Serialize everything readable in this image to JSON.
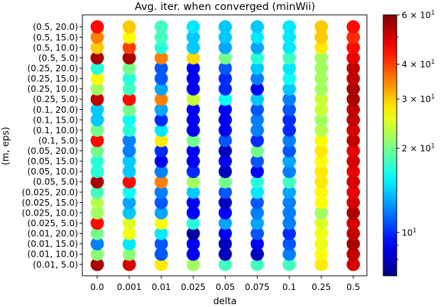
{
  "chart_data": {
    "type": "scatter",
    "title": "Avg. iter. when converged (minWii)",
    "xlabel": "delta",
    "ylabel": "(m, eps)",
    "x_categories": [
      "0.0",
      "0.001",
      "0.01",
      "0.025",
      "0.05",
      "0.075",
      "0.1",
      "0.25",
      "0.5"
    ],
    "y_categories": [
      "(0.01, 5.0)",
      "(0.01, 10.0)",
      "(0.01, 15.0)",
      "(0.01, 20.0)",
      "(0.025, 5.0)",
      "(0.025, 10.0)",
      "(0.025, 15.0)",
      "(0.025, 20.0)",
      "(0.05, 5.0)",
      "(0.05, 10.0)",
      "(0.05, 15.0)",
      "(0.05, 20.0)",
      "(0.1, 5.0)",
      "(0.1, 10.0)",
      "(0.1, 15.0)",
      "(0.1, 20.0)",
      "(0.25, 5.0)",
      "(0.25, 10.0)",
      "(0.25, 15.0)",
      "(0.25, 20.0)",
      "(0.5, 5.0)",
      "(0.5, 10.0)",
      "(0.5, 15.0)",
      "(0.5, 20.0)"
    ],
    "values": [
      [
        55,
        50,
        28,
        22,
        18,
        18,
        18,
        28,
        50
      ],
      [
        21,
        21,
        11,
        9,
        8,
        8,
        12,
        27,
        52
      ],
      [
        12,
        15,
        11,
        9,
        8,
        9,
        11,
        26,
        55
      ],
      [
        20,
        26,
        15,
        7.5,
        9,
        11,
        10,
        26,
        52
      ],
      [
        45,
        25,
        27,
        17,
        13,
        13,
        12,
        25,
        50
      ],
      [
        22,
        14,
        13,
        9,
        9,
        12,
        12,
        22,
        55
      ],
      [
        23,
        13,
        11,
        9,
        8,
        11,
        12,
        27,
        50
      ],
      [
        18,
        16,
        12,
        14,
        11,
        15,
        13,
        27,
        48
      ],
      [
        55,
        45,
        35,
        22,
        20,
        17,
        18,
        28,
        50
      ],
      [
        17,
        14,
        12,
        10,
        8,
        9,
        12,
        28,
        48
      ],
      [
        17,
        14,
        9,
        9,
        9,
        11,
        13,
        27,
        50
      ],
      [
        20,
        12,
        10,
        9,
        8,
        20,
        11,
        28,
        48
      ],
      [
        45,
        12,
        28,
        20,
        11,
        10,
        12,
        27,
        52
      ],
      [
        20,
        17,
        15,
        9,
        9,
        12,
        10,
        23,
        50
      ],
      [
        14,
        16,
        10,
        9,
        9,
        12,
        10,
        22,
        52
      ],
      [
        14,
        20,
        13,
        9,
        9,
        11,
        11,
        24,
        52
      ],
      [
        52,
        45,
        35,
        24,
        16,
        14,
        12,
        24,
        55
      ],
      [
        22,
        18,
        13,
        9,
        10,
        9,
        14,
        22,
        55
      ],
      [
        27,
        17,
        11,
        9,
        10,
        12,
        16,
        22,
        52
      ],
      [
        17,
        20,
        11,
        9,
        11,
        14,
        15,
        22,
        52
      ],
      [
        55,
        55,
        35,
        29,
        20,
        17,
        18,
        22,
        48
      ],
      [
        30,
        40,
        17,
        14,
        13,
        13,
        15,
        28,
        45
      ],
      [
        35,
        27,
        18,
        14,
        14,
        15,
        15,
        30,
        42
      ],
      [
        45,
        30,
        18,
        15,
        14,
        14,
        15,
        30,
        45
      ]
    ],
    "colorbar": {
      "scale": "log",
      "range": [
        7,
        60
      ],
      "labeled_ticks": [
        {
          "value": 10,
          "base": "10",
          "exp": "1"
        },
        {
          "value": 20,
          "base": "2 × 10",
          "exp": "1"
        },
        {
          "value": 30,
          "base": "3 × 10",
          "exp": "1"
        },
        {
          "value": 40,
          "base": "4 × 10",
          "exp": "1"
        },
        {
          "value": 60,
          "base": "6 × 10",
          "exp": "1"
        }
      ],
      "minor_ticks": [
        8,
        9,
        50
      ],
      "colormap": "jet"
    },
    "grid": false,
    "legend": "none"
  }
}
